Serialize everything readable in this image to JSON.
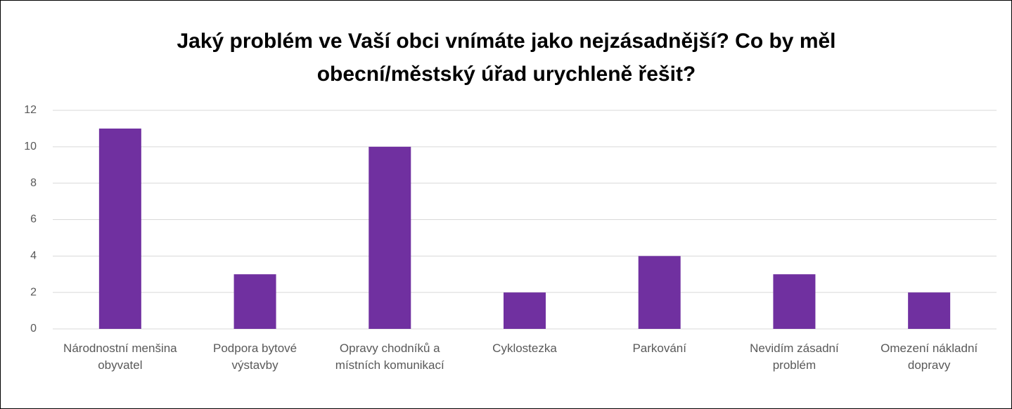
{
  "chart_data": {
    "type": "bar",
    "title": "Jaký problém ve Vaší obci vnímáte jako nejzásadnější? Co by měl obecní/městský úřad urychleně řešit?",
    "categories": [
      "Národnostní menšina obyvatel",
      "Podpora bytové výstavby",
      "Opravy chodníků a místních komunikací",
      "Cyklostezka",
      "Parkování",
      "Nevidím zásadní problém",
      "Omezení nákladní dopravy"
    ],
    "values": [
      11,
      3,
      10,
      2,
      4,
      3,
      2
    ],
    "color": "#7030a0",
    "ylim": [
      0,
      12
    ],
    "yticks": [
      0,
      2,
      4,
      6,
      8,
      10,
      12
    ],
    "grid": true
  }
}
